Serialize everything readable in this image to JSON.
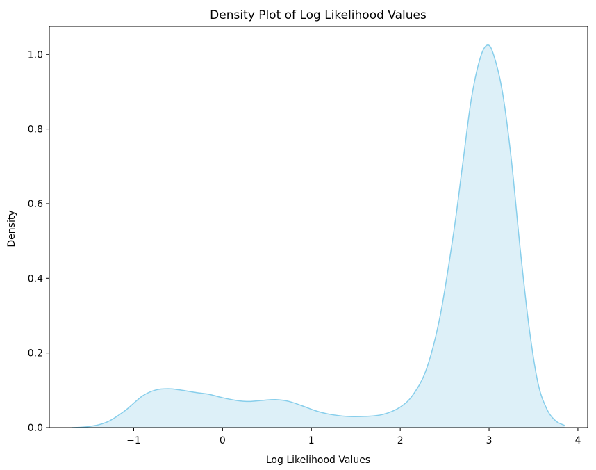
{
  "chart_data": {
    "type": "area",
    "title": "Density Plot of Log Likelihood Values",
    "xlabel": "Log Likelihood Values",
    "ylabel": "Density",
    "xlim": [
      -1.95,
      4.11
    ],
    "ylim": [
      0.0,
      1.075
    ],
    "xticks": [
      -1,
      0,
      1,
      2,
      3,
      4
    ],
    "xtick_labels": [
      "−1",
      "0",
      "1",
      "2",
      "3",
      "4"
    ],
    "yticks": [
      0.0,
      0.2,
      0.4,
      0.6,
      0.8,
      1.0
    ],
    "ytick_labels": [
      "0.0",
      "0.2",
      "0.4",
      "0.6",
      "0.8",
      "1.0"
    ],
    "grid": false,
    "line_color": "#87ceeb",
    "fill_color": "#ddf0f8",
    "series": [
      {
        "x": [
          -1.7,
          -1.5,
          -1.3,
          -1.1,
          -0.9,
          -0.75,
          -0.6,
          -0.45,
          -0.3,
          -0.15,
          0.0,
          0.15,
          0.3,
          0.45,
          0.6,
          0.75,
          0.9,
          1.05,
          1.2,
          1.4,
          1.6,
          1.8,
          2.0,
          2.15,
          2.3,
          2.45,
          2.6,
          2.7,
          2.8,
          2.9,
          2.98,
          3.05,
          3.15,
          3.25,
          3.35,
          3.45,
          3.55,
          3.65,
          3.75,
          3.85
        ],
        "y": [
          0.0,
          0.003,
          0.015,
          0.045,
          0.085,
          0.101,
          0.104,
          0.1,
          0.094,
          0.089,
          0.08,
          0.073,
          0.07,
          0.073,
          0.075,
          0.07,
          0.058,
          0.045,
          0.036,
          0.03,
          0.03,
          0.035,
          0.055,
          0.09,
          0.16,
          0.3,
          0.52,
          0.7,
          0.88,
          0.99,
          1.025,
          1.0,
          0.9,
          0.72,
          0.48,
          0.27,
          0.12,
          0.05,
          0.018,
          0.006
        ]
      }
    ]
  }
}
